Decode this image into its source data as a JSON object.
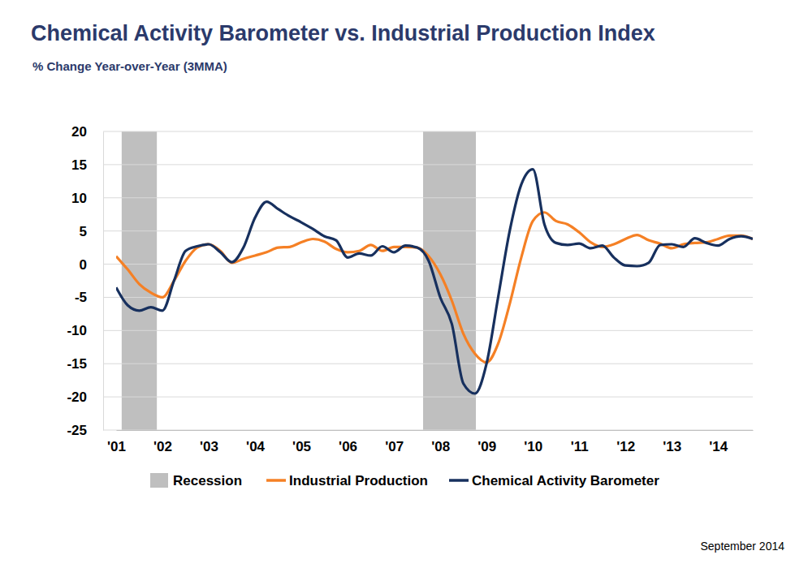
{
  "chart_data": {
    "type": "line",
    "title": "Chemical Activity Barometer vs. Industrial Production Index",
    "subtitle": "% Change Year-over-Year (3MMA)",
    "annotation": "September 2014",
    "x": [
      2001,
      2001.25,
      2001.5,
      2001.75,
      2002,
      2002.25,
      2002.5,
      2002.75,
      2003,
      2003.25,
      2003.5,
      2003.75,
      2004,
      2004.25,
      2004.5,
      2004.75,
      2005,
      2005.25,
      2005.5,
      2005.75,
      2006,
      2006.25,
      2006.5,
      2006.75,
      2007,
      2007.25,
      2007.5,
      2007.75,
      2008,
      2008.25,
      2008.5,
      2008.75,
      2009,
      2009.25,
      2009.5,
      2009.75,
      2010,
      2010.25,
      2010.5,
      2010.75,
      2011,
      2011.25,
      2011.5,
      2011.75,
      2012,
      2012.25,
      2012.5,
      2012.75,
      2013,
      2013.25,
      2013.5,
      2013.75,
      2014,
      2014.25,
      2014.5,
      2014.75
    ],
    "xlim": [
      2001,
      2014.75
    ],
    "xticks": [
      {
        "value": 2001,
        "label": "'01"
      },
      {
        "value": 2002,
        "label": "'02"
      },
      {
        "value": 2003,
        "label": "'03"
      },
      {
        "value": 2004,
        "label": "'04"
      },
      {
        "value": 2005,
        "label": "'05"
      },
      {
        "value": 2006,
        "label": "'06"
      },
      {
        "value": 2007,
        "label": "'07"
      },
      {
        "value": 2008,
        "label": "'08"
      },
      {
        "value": 2009,
        "label": "'09"
      },
      {
        "value": 2010,
        "label": "'10"
      },
      {
        "value": 2011,
        "label": "'11"
      },
      {
        "value": 2012,
        "label": "'12"
      },
      {
        "value": 2013,
        "label": "'13"
      },
      {
        "value": 2014,
        "label": "'14"
      }
    ],
    "ylim": [
      -25,
      20
    ],
    "yticks": [
      -25,
      -20,
      -15,
      -10,
      -5,
      0,
      5,
      10,
      15,
      20
    ],
    "grid": true,
    "legend": "bottom",
    "recession": {
      "name": "Recession",
      "color": "#bfbfbf",
      "ranges": [
        [
          2001.12,
          2001.88
        ],
        [
          2007.63,
          2008.77
        ]
      ]
    },
    "series": [
      {
        "name": "Industrial Production",
        "color": "#f58025",
        "type": "line",
        "values": [
          1.2,
          -0.8,
          -3,
          -4.3,
          -5,
          -2.5,
          0.5,
          2.5,
          3,
          2,
          0.2,
          0.8,
          1.3,
          1.8,
          2.5,
          2.6,
          3.3,
          3.8,
          3.4,
          2.3,
          1.8,
          2.0,
          2.9,
          2.0,
          2.6,
          2.6,
          2.5,
          1.2,
          -1.5,
          -5.5,
          -10.5,
          -13.5,
          -14.8,
          -12,
          -6,
          1,
          6.5,
          7.8,
          6.5,
          6.0,
          4.8,
          3.3,
          2.6,
          3.0,
          3.8,
          4.4,
          3.6,
          3.1,
          2.4,
          3.0,
          3.2,
          3.3,
          3.8,
          4.3,
          4.3,
          3.8
        ]
      },
      {
        "name": "Chemical Activity Barometer",
        "color": "#17305e",
        "type": "line",
        "values": [
          -3.5,
          -6.2,
          -7.0,
          -6.5,
          -7.0,
          -2.5,
          2.0,
          2.7,
          3.0,
          1.8,
          0.3,
          2.5,
          7.0,
          9.4,
          8.3,
          7.2,
          6.3,
          5.3,
          4.2,
          3.6,
          1.0,
          1.6,
          1.3,
          2.7,
          1.8,
          2.8,
          2.5,
          0.5,
          -5,
          -9,
          -18,
          -19.5,
          -15,
          -5,
          5,
          12,
          14.3,
          6.0,
          3.2,
          2.9,
          3.1,
          2.4,
          2.8,
          1.0,
          -0.2,
          -0.3,
          0.2,
          2.9,
          3.0,
          2.6,
          3.9,
          3.2,
          2.8,
          3.8,
          4.2,
          3.8
        ]
      }
    ]
  }
}
